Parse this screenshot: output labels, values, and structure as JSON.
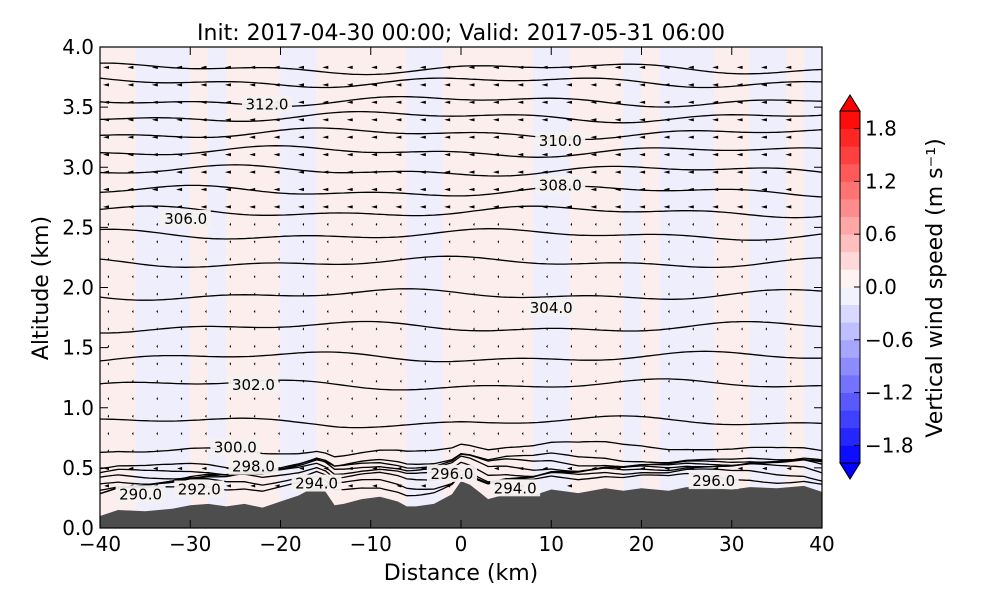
{
  "chart_data": {
    "type": "contour",
    "title": "Init: 2017-04-30 00:00; Valid: 2017-05-31 06:00",
    "xlabel": "Distance (km)",
    "ylabel": "Altitude (km)",
    "xlim": [
      -40,
      40
    ],
    "ylim": [
      0.0,
      4.0
    ],
    "xticks": [
      -40,
      -30,
      -20,
      -10,
      0,
      10,
      20,
      30,
      40
    ],
    "xtick_labels": [
      "−40",
      "−30",
      "−20",
      "−10",
      "0",
      "10",
      "20",
      "30",
      "40"
    ],
    "yticks": [
      0.0,
      0.5,
      1.0,
      1.5,
      2.0,
      2.5,
      3.0,
      3.5,
      4.0
    ],
    "ytick_labels": [
      "0.0",
      "0.5",
      "1.0",
      "1.5",
      "2.0",
      "2.5",
      "3.0",
      "3.5",
      "4.0"
    ],
    "colorbar": {
      "label": "Vertical wind speed (m s⁻¹)",
      "range": [
        -2.0,
        2.0
      ],
      "ticks": [
        1.8,
        1.2,
        0.6,
        0.0,
        -0.6,
        -1.2,
        -1.8
      ],
      "tick_labels": [
        "1.8",
        "1.2",
        "0.6",
        "0.0",
        "−0.6",
        "−1.2",
        "−1.8"
      ],
      "colormap": "bwr",
      "colors": {
        "low": "#0000ff",
        "mid": "#ffffff",
        "high": "#ff0000"
      }
    },
    "contour_labels": [
      {
        "text": "312.0",
        "x": -21.5,
        "y": 3.52
      },
      {
        "text": "310.0",
        "x": 11.0,
        "y": 3.22
      },
      {
        "text": "308.0",
        "x": 11.0,
        "y": 2.85
      },
      {
        "text": "306.0",
        "x": -30.5,
        "y": 2.57
      },
      {
        "text": "304.0",
        "x": 10.0,
        "y": 1.83
      },
      {
        "text": "302.0",
        "x": -23.0,
        "y": 1.19
      },
      {
        "text": "300.0",
        "x": -25.0,
        "y": 0.67
      },
      {
        "text": "298.0",
        "x": -23.0,
        "y": 0.51
      },
      {
        "text": "296.0",
        "x": -1.0,
        "y": 0.45
      },
      {
        "text": "296.0",
        "x": 28.0,
        "y": 0.39
      },
      {
        "text": "294.0",
        "x": -16.0,
        "y": 0.37
      },
      {
        "text": "294.0",
        "x": 6.0,
        "y": 0.33
      },
      {
        "text": "292.0",
        "x": -29.0,
        "y": 0.32
      },
      {
        "text": "290.0",
        "x": -35.5,
        "y": 0.28
      }
    ],
    "isentrope_heights": [
      3.82,
      3.71,
      3.55,
      3.42,
      3.28,
      3.13,
      2.97,
      2.8,
      2.63,
      2.44,
      2.21,
      1.94,
      1.67,
      1.42,
      1.19,
      0.88,
      0.64,
      0.53,
      0.5,
      0.47,
      0.44,
      0.41,
      0.37,
      0.33
    ],
    "terrain": {
      "color": "#4d4d4d",
      "x": [
        -40,
        -38,
        -35,
        -32,
        -30,
        -28,
        -26,
        -24,
        -22,
        -20,
        -18,
        -16,
        -15,
        -14,
        -13,
        -11,
        -9,
        -7,
        -6,
        -5,
        -3,
        -1,
        0,
        1,
        2,
        3,
        5,
        8,
        10,
        13,
        16,
        18,
        20,
        23,
        25,
        28,
        30,
        32,
        35,
        38,
        40
      ],
      "y": [
        0.1,
        0.15,
        0.14,
        0.16,
        0.19,
        0.2,
        0.18,
        0.2,
        0.17,
        0.22,
        0.27,
        0.35,
        0.3,
        0.19,
        0.2,
        0.24,
        0.26,
        0.22,
        0.18,
        0.18,
        0.2,
        0.28,
        0.39,
        0.36,
        0.3,
        0.24,
        0.28,
        0.27,
        0.32,
        0.29,
        0.33,
        0.31,
        0.33,
        0.31,
        0.34,
        0.33,
        0.32,
        0.34,
        0.33,
        0.35,
        0.3
      ]
    }
  }
}
